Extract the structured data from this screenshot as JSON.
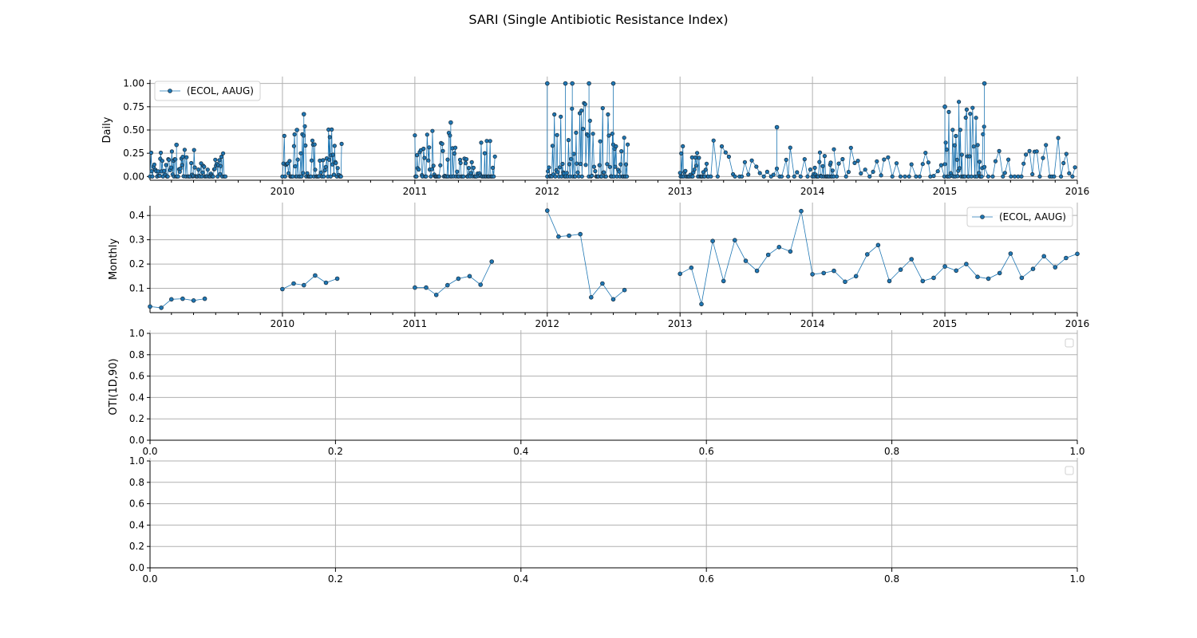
{
  "figure": {
    "title": "SARI (Single Antibiotic Resistance Index)"
  },
  "chart_data": [
    {
      "type": "scatter",
      "name": "daily",
      "ylabel": "Daily",
      "xlabel": "",
      "x_range": [
        "2009-01-01",
        "2016-01-01"
      ],
      "ylim": [
        -0.04,
        1.04
      ],
      "y_ticks": [
        0.0,
        0.25,
        0.5,
        0.75,
        1.0
      ],
      "y_tick_labels": [
        "0.00",
        "0.25",
        "0.50",
        "0.75",
        "1.00"
      ],
      "x_ticks": [
        "2010-01-01",
        "2011-01-01",
        "2012-01-01",
        "2013-01-01",
        "2014-01-01",
        "2015-01-01",
        "2016-01-01"
      ],
      "x_tick_labels": [
        "2010",
        "2011",
        "2012",
        "2013",
        "2014",
        "2015",
        "2016"
      ],
      "grid": true,
      "legend_position": "top-left",
      "series": [
        {
          "name": "(ECOL, AAUG)",
          "segments": [
            {
              "start": "2009-01-01",
              "end": "2009-07-31",
              "max": 0.34
            },
            {
              "start": "2010-01-01",
              "end": "2010-06-15",
              "max": 0.67
            },
            {
              "start": "2011-01-01",
              "end": "2011-08-10",
              "max": 0.58
            },
            {
              "start": "2012-01-01",
              "end": "2012-08-10",
              "max": 1.0
            },
            {
              "start": "2013-01-01",
              "end": "2013-03-20",
              "max": 0.4
            },
            {
              "start": "2013-03-20",
              "end": "2014-01-01",
              "max": 0.53
            },
            {
              "start": "2014-01-01",
              "end": "2014-03-01",
              "max": 0.36
            },
            {
              "start": "2014-03-01",
              "end": "2015-01-01",
              "max": 0.38
            },
            {
              "start": "2015-01-01",
              "end": "2015-04-20",
              "max": 1.0
            },
            {
              "start": "2015-04-20",
              "end": "2016-01-01",
              "max": 0.5
            }
          ],
          "peaks": [
            {
              "x": "2009-03-15",
              "y": 0.34
            },
            {
              "x": "2010-03-01",
              "y": 0.67
            },
            {
              "x": "2010-02-10",
              "y": 0.5
            },
            {
              "x": "2011-04-10",
              "y": 0.58
            },
            {
              "x": "2012-01-01",
              "y": 1.0
            },
            {
              "x": "2012-02-20",
              "y": 1.0
            },
            {
              "x": "2012-03-10",
              "y": 1.0
            },
            {
              "x": "2012-04-25",
              "y": 1.0
            },
            {
              "x": "2012-07-01",
              "y": 1.0
            },
            {
              "x": "2013-09-25",
              "y": 0.53
            },
            {
              "x": "2015-01-01",
              "y": 0.75
            },
            {
              "x": "2015-04-20",
              "y": 1.0
            }
          ]
        }
      ]
    },
    {
      "type": "line",
      "name": "monthly",
      "ylabel": "Monthly",
      "xlabel": "",
      "x_range": [
        "2009-01-01",
        "2016-01-01"
      ],
      "ylim": [
        0.0,
        0.44
      ],
      "y_ticks": [
        0.1,
        0.2,
        0.3,
        0.4
      ],
      "y_tick_labels": [
        "0.1",
        "0.2",
        "0.3",
        "0.4"
      ],
      "x_ticks": [
        "2010-01-01",
        "2011-01-01",
        "2012-01-01",
        "2013-01-01",
        "2014-01-01",
        "2015-01-01",
        "2016-01-01"
      ],
      "x_tick_labels": [
        "2010",
        "2011",
        "2012",
        "2013",
        "2014",
        "2015",
        "2016"
      ],
      "grid": true,
      "legend_position": "top-right",
      "series": [
        {
          "name": "(ECOL, AAUG)",
          "segments": [
            [
              {
                "x": "2009-01",
                "y": 0.025
              },
              {
                "x": "2009-02",
                "y": 0.02
              },
              {
                "x": "2009-03",
                "y": 0.055
              },
              {
                "x": "2009-04",
                "y": 0.057
              },
              {
                "x": "2009-05",
                "y": 0.05
              },
              {
                "x": "2009-06",
                "y": 0.057
              }
            ],
            [
              {
                "x": "2010-01",
                "y": 0.097
              },
              {
                "x": "2010-02",
                "y": 0.12
              },
              {
                "x": "2010-03",
                "y": 0.113
              },
              {
                "x": "2010-04",
                "y": 0.153
              },
              {
                "x": "2010-05",
                "y": 0.123
              },
              {
                "x": "2010-06",
                "y": 0.14
              }
            ],
            [
              {
                "x": "2011-01",
                "y": 0.103
              },
              {
                "x": "2011-02",
                "y": 0.103
              },
              {
                "x": "2011-03",
                "y": 0.073
              },
              {
                "x": "2011-04",
                "y": 0.113
              },
              {
                "x": "2011-05",
                "y": 0.14
              },
              {
                "x": "2011-06",
                "y": 0.15
              },
              {
                "x": "2011-07",
                "y": 0.115
              },
              {
                "x": "2011-08",
                "y": 0.21
              }
            ],
            [
              {
                "x": "2012-01",
                "y": 0.42
              },
              {
                "x": "2012-02",
                "y": 0.313
              },
              {
                "x": "2012-03",
                "y": 0.317
              },
              {
                "x": "2012-04",
                "y": 0.323
              },
              {
                "x": "2012-05",
                "y": 0.063
              },
              {
                "x": "2012-06",
                "y": 0.12
              },
              {
                "x": "2012-07",
                "y": 0.055
              },
              {
                "x": "2012-08",
                "y": 0.093
              }
            ],
            [
              {
                "x": "2013-01",
                "y": 0.16
              },
              {
                "x": "2013-02",
                "y": 0.185
              },
              {
                "x": "2013-03",
                "y": 0.035
              },
              {
                "x": "2013-04",
                "y": 0.295
              },
              {
                "x": "2013-05",
                "y": 0.13
              },
              {
                "x": "2013-06",
                "y": 0.298
              },
              {
                "x": "2013-07",
                "y": 0.213
              },
              {
                "x": "2013-08",
                "y": 0.172
              },
              {
                "x": "2013-09",
                "y": 0.238
              },
              {
                "x": "2013-10",
                "y": 0.27
              },
              {
                "x": "2013-11",
                "y": 0.252
              },
              {
                "x": "2013-12",
                "y": 0.418
              },
              {
                "x": "2014-01",
                "y": 0.158
              },
              {
                "x": "2014-02",
                "y": 0.163
              },
              {
                "x": "2014-03",
                "y": 0.172
              },
              {
                "x": "2014-04",
                "y": 0.127
              },
              {
                "x": "2014-05",
                "y": 0.15
              },
              {
                "x": "2014-06",
                "y": 0.24
              },
              {
                "x": "2014-07",
                "y": 0.278
              },
              {
                "x": "2014-08",
                "y": 0.13
              },
              {
                "x": "2014-09",
                "y": 0.177
              },
              {
                "x": "2014-10",
                "y": 0.22
              },
              {
                "x": "2014-11",
                "y": 0.13
              },
              {
                "x": "2014-12",
                "y": 0.143
              },
              {
                "x": "2015-01",
                "y": 0.19
              },
              {
                "x": "2015-02",
                "y": 0.173
              },
              {
                "x": "2015-03",
                "y": 0.2
              },
              {
                "x": "2015-04",
                "y": 0.147
              },
              {
                "x": "2015-05",
                "y": 0.14
              },
              {
                "x": "2015-06",
                "y": 0.163
              },
              {
                "x": "2015-07",
                "y": 0.243
              },
              {
                "x": "2015-08",
                "y": 0.143
              },
              {
                "x": "2015-09",
                "y": 0.18
              },
              {
                "x": "2015-10",
                "y": 0.232
              },
              {
                "x": "2015-11",
                "y": 0.187
              },
              {
                "x": "2015-12",
                "y": 0.225
              },
              {
                "x": "2016-01",
                "y": 0.242
              }
            ]
          ]
        }
      ]
    },
    {
      "type": "line",
      "name": "oti",
      "ylabel": "OTI(1D,90)",
      "xlabel": "",
      "xlim": [
        0.0,
        1.0
      ],
      "ylim": [
        0.0,
        1.0
      ],
      "x_ticks": [
        0.0,
        0.2,
        0.4,
        0.6,
        0.8,
        1.0
      ],
      "x_tick_labels": [
        "0.0",
        "0.2",
        "0.4",
        "0.6",
        "0.8",
        "1.0"
      ],
      "y_ticks": [
        0.0,
        0.2,
        0.4,
        0.6,
        0.8,
        1.0
      ],
      "y_tick_labels": [
        "0.0",
        "0.2",
        "0.4",
        "0.6",
        "0.8",
        "1.0"
      ],
      "grid": true,
      "legend_position": "top-right",
      "series": []
    },
    {
      "type": "line",
      "name": "empty",
      "ylabel": "",
      "xlabel": "",
      "xlim": [
        0.0,
        1.0
      ],
      "ylim": [
        0.0,
        1.0
      ],
      "x_ticks": [
        0.0,
        0.2,
        0.4,
        0.6,
        0.8,
        1.0
      ],
      "x_tick_labels": [
        "0.0",
        "0.2",
        "0.4",
        "0.6",
        "0.8",
        "1.0"
      ],
      "y_ticks": [
        0.0,
        0.2,
        0.4,
        0.6,
        0.8,
        1.0
      ],
      "y_tick_labels": [
        "0.0",
        "0.2",
        "0.4",
        "0.6",
        "0.8",
        "1.0"
      ],
      "grid": true,
      "legend_position": "top-right",
      "series": []
    }
  ]
}
